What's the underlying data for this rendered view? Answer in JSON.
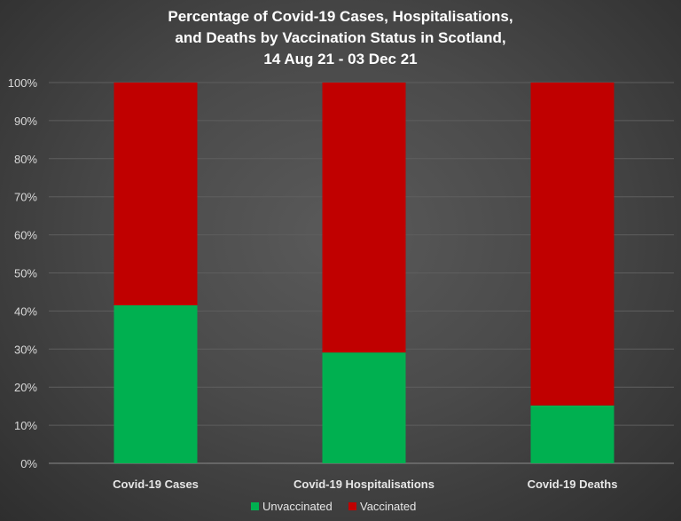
{
  "chart_data": {
    "type": "bar",
    "stacked": true,
    "title_lines": [
      "Percentage of Covid-19 Cases, Hospitalisations,",
      "and Deaths by Vaccination Status in Scotland,",
      "14 Aug 21 - 03 Dec 21"
    ],
    "categories": [
      "Covid-19 Cases",
      "Covid-19 Hospitalisations",
      "Covid-19 Deaths"
    ],
    "series": [
      {
        "name": "Unvaccinated",
        "color": "#00b050",
        "values": [
          41.5,
          29.1,
          15.2
        ]
      },
      {
        "name": "Vaccinated",
        "color": "#c00000",
        "values": [
          58.5,
          70.9,
          84.8
        ]
      }
    ],
    "yticks": [
      "0%",
      "10%",
      "20%",
      "30%",
      "40%",
      "50%",
      "60%",
      "70%",
      "80%",
      "90%",
      "100%"
    ],
    "ylim": [
      0,
      100
    ],
    "xlabel": "",
    "ylabel": "",
    "grid": true,
    "legend": "bottom"
  }
}
